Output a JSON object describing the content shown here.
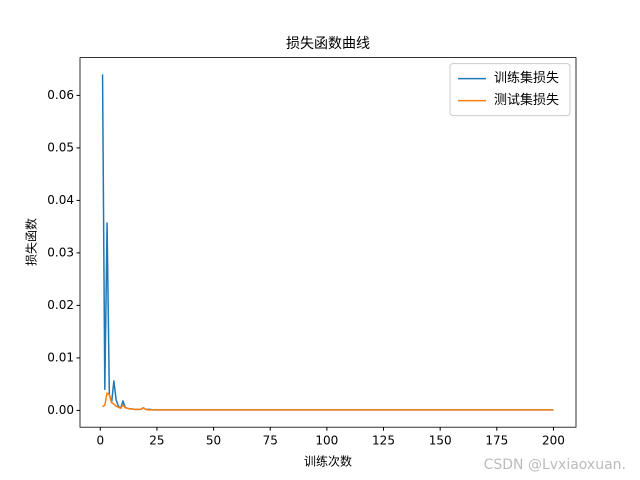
{
  "chart_data": {
    "type": "line",
    "title": "损失函数曲线",
    "x_label": "训练次数",
    "y_label": "损失函数",
    "watermark": "CSDN @Lvxiaoxuan.",
    "legend": "upper right",
    "grid": false,
    "xlim": [
      -8.95,
      209.95
    ],
    "ylim": [
      -0.0032,
      0.0672
    ],
    "xticks": [
      0,
      25,
      50,
      75,
      100,
      125,
      150,
      175,
      200
    ],
    "yticks": [
      {
        "value": 0,
        "label": "0.00"
      },
      {
        "value": 0.01,
        "label": "0.01"
      },
      {
        "value": 0.02,
        "label": "0.02"
      },
      {
        "value": 0.03,
        "label": "0.03"
      },
      {
        "value": 0.04,
        "label": "0.04"
      },
      {
        "value": 0.05,
        "label": "0.05"
      },
      {
        "value": 0.06,
        "label": "0.06"
      }
    ],
    "x": [
      1,
      2,
      3,
      4,
      5,
      6,
      7,
      8,
      9,
      10,
      11,
      12,
      13,
      14,
      15,
      16,
      17,
      18,
      19,
      20,
      21,
      22,
      23,
      24,
      25,
      26,
      27,
      28,
      29,
      30,
      31,
      32,
      33,
      34,
      35,
      36,
      37,
      38,
      39,
      40,
      41,
      42,
      43,
      44,
      45,
      46,
      47,
      48,
      49,
      50,
      51,
      52,
      53,
      54,
      55,
      56,
      57,
      58,
      59,
      60,
      61,
      62,
      63,
      64,
      65,
      66,
      67,
      68,
      69,
      70,
      71,
      72,
      73,
      74,
      75,
      76,
      77,
      78,
      79,
      80,
      81,
      82,
      83,
      84,
      85,
      86,
      87,
      88,
      89,
      90,
      91,
      92,
      93,
      94,
      95,
      96,
      97,
      98,
      99,
      100,
      101,
      102,
      103,
      104,
      105,
      106,
      107,
      108,
      109,
      110,
      111,
      112,
      113,
      114,
      115,
      116,
      117,
      118,
      119,
      120,
      121,
      122,
      123,
      124,
      125,
      126,
      127,
      128,
      129,
      130,
      131,
      132,
      133,
      134,
      135,
      136,
      137,
      138,
      139,
      140,
      141,
      142,
      143,
      144,
      145,
      146,
      147,
      148,
      149,
      150,
      151,
      152,
      153,
      154,
      155,
      156,
      157,
      158,
      159,
      160,
      161,
      162,
      163,
      164,
      165,
      166,
      167,
      168,
      169,
      170,
      171,
      172,
      173,
      174,
      175,
      176,
      177,
      178,
      179,
      180,
      181,
      182,
      183,
      184,
      185,
      186,
      187,
      188,
      189,
      190,
      191,
      192,
      193,
      194,
      195,
      196,
      197,
      198,
      199,
      200
    ],
    "series": [
      {
        "name": "训练集损失",
        "color": "#1f77b4",
        "values": [
          0.064,
          0.004,
          0.0357,
          0.003,
          0.0015,
          0.0056,
          0.002,
          0.0008,
          0.0004,
          0.0018,
          0.0006,
          0.0004,
          0.0003,
          0.0003,
          0.0002,
          0.0002,
          0.0002,
          0.0002,
          0.0005,
          0.0002,
          0.0002,
          0.0002,
          0.0001,
          0.0001,
          0.0001,
          0.0001,
          0.0001,
          0.0001,
          0.0001,
          0.0001,
          0.0001,
          0.0001,
          0.0001,
          0.0001,
          0.0001,
          0.0001,
          0.0001,
          0.0001,
          0.0001,
          0.0001,
          0.0001,
          0.0001,
          0.0001,
          0.0001,
          0.0001,
          0.0001,
          0.0001,
          0.0001,
          0.0001,
          0.0001,
          0.0001,
          0.0001,
          0.0001,
          0.0001,
          0.0001,
          0.0001,
          0.0001,
          0.0001,
          0.0001,
          0.0001,
          0.0001,
          0.0001,
          0.0001,
          0.0001,
          0.0001,
          0.0001,
          0.0001,
          0.0001,
          0.0001,
          0.0001,
          0.0001,
          0.0001,
          0.0001,
          0.0001,
          0.0001,
          0.0001,
          0.0001,
          0.0001,
          0.0001,
          0.0001,
          0.0001,
          0.0001,
          0.0001,
          0.0001,
          0.0001,
          0.0001,
          0.0001,
          0.0001,
          0.0001,
          0.0001,
          0.0001,
          0.0001,
          0.0001,
          0.0001,
          0.0001,
          0.0001,
          0.0001,
          0.0001,
          0.0001,
          0.0001,
          0.0001,
          0.0001,
          0.0001,
          0.0001,
          0.0001,
          0.0001,
          0.0001,
          0.0001,
          0.0001,
          0.0001,
          0.0001,
          0.0001,
          0.0001,
          0.0001,
          0.0001,
          0.0001,
          0.0001,
          0.0001,
          0.0001,
          0.0001,
          0.0001,
          0.0001,
          0.0001,
          0.0001,
          0.0001,
          0.0001,
          0.0001,
          0.0001,
          0.0001,
          0.0001,
          0.0001,
          0.0001,
          0.0001,
          0.0001,
          0.0001,
          0.0001,
          0.0001,
          0.0001,
          0.0001,
          0.0001,
          0.0001,
          0.0001,
          0.0001,
          0.0001,
          0.0001,
          0.0001,
          0.0001,
          0.0001,
          0.0001,
          0.0001,
          0.0001,
          0.0001,
          0.0001,
          0.0001,
          0.0001,
          0.0001,
          0.0001,
          0.0001,
          0.0001,
          0.0001,
          0.0001,
          0.0001,
          0.0001,
          0.0001,
          0.0001,
          0.0001,
          0.0001,
          0.0001,
          0.0001,
          0.0001,
          0.0001,
          0.0001,
          0.0001,
          0.0001,
          0.0001,
          0.0001,
          0.0001,
          0.0001,
          0.0001,
          0.0001,
          0.0001,
          0.0001,
          0.0001,
          0.0001,
          0.0001,
          0.0001,
          0.0001,
          0.0001,
          0.0001,
          0.0001,
          0.0001,
          0.0001,
          0.0001,
          0.0001,
          0.0001,
          0.0001,
          0.0001,
          0.0001,
          0.0001,
          0.0001
        ]
      },
      {
        "name": "测试集损失",
        "color": "#ff7f0e",
        "values": [
          0.0007,
          0.001,
          0.0033,
          0.003,
          0.0015,
          0.0012,
          0.0008,
          0.0006,
          0.0004,
          0.001,
          0.0005,
          0.0004,
          0.0003,
          0.0003,
          0.0002,
          0.0002,
          0.0002,
          0.0002,
          0.0005,
          0.0002,
          0.0001,
          0.0001,
          0.0001,
          0.0001,
          0.0001,
          0.0001,
          0.0001,
          0.0001,
          0.0001,
          0.0001,
          0.0001,
          0.0001,
          0.0001,
          0.0001,
          0.0001,
          0.0001,
          0.0001,
          0.0001,
          0.0001,
          0.0001,
          0.0001,
          0.0001,
          0.0001,
          0.0001,
          0.0001,
          0.0001,
          0.0001,
          0.0001,
          0.0001,
          0.0001,
          0.0001,
          0.0001,
          0.0001,
          0.0001,
          0.0001,
          0.0001,
          0.0001,
          0.0001,
          0.0001,
          0.0001,
          0.0001,
          0.0001,
          0.0001,
          0.0001,
          0.0001,
          0.0001,
          0.0001,
          0.0001,
          0.0001,
          0.0001,
          0.0001,
          0.0001,
          0.0001,
          0.0001,
          0.0001,
          0.0001,
          0.0001,
          0.0001,
          0.0001,
          0.0001,
          0.0001,
          0.0001,
          0.0001,
          0.0001,
          0.0001,
          0.0001,
          0.0001,
          0.0001,
          0.0001,
          0.0001,
          0.0001,
          0.0001,
          0.0001,
          0.0001,
          0.0001,
          0.0001,
          0.0001,
          0.0001,
          0.0001,
          0.0001,
          0.0001,
          0.0001,
          0.0001,
          0.0001,
          0.0001,
          0.0001,
          0.0001,
          0.0001,
          0.0001,
          0.0001,
          0.0001,
          0.0001,
          0.0001,
          0.0001,
          0.0001,
          0.0001,
          0.0001,
          0.0001,
          0.0001,
          0.0001,
          0.0001,
          0.0001,
          0.0001,
          0.0001,
          0.0001,
          0.0001,
          0.0001,
          0.0001,
          0.0001,
          0.0001,
          0.0001,
          0.0001,
          0.0001,
          0.0001,
          0.0001,
          0.0001,
          0.0001,
          0.0001,
          0.0001,
          0.0001,
          0.0001,
          0.0001,
          0.0001,
          0.0001,
          0.0001,
          0.0001,
          0.0001,
          0.0001,
          0.0001,
          0.0001,
          0.0001,
          0.0001,
          0.0001,
          0.0001,
          0.0001,
          0.0001,
          0.0001,
          0.0001,
          0.0001,
          0.0001,
          0.0001,
          0.0001,
          0.0001,
          0.0001,
          0.0001,
          0.0001,
          0.0001,
          0.0001,
          0.0001,
          0.0001,
          0.0001,
          0.0001,
          0.0001,
          0.0001,
          0.0001,
          0.0001,
          0.0001,
          0.0001,
          0.0001,
          0.0001,
          0.0001,
          0.0001,
          0.0001,
          0.0001,
          0.0001,
          0.0001,
          0.0001,
          0.0001,
          0.0001,
          0.0001,
          0.0001,
          0.0001,
          0.0001,
          0.0001,
          0.0001,
          0.0001,
          0.0001,
          0.0001,
          0.0001,
          0.0001
        ]
      }
    ]
  }
}
